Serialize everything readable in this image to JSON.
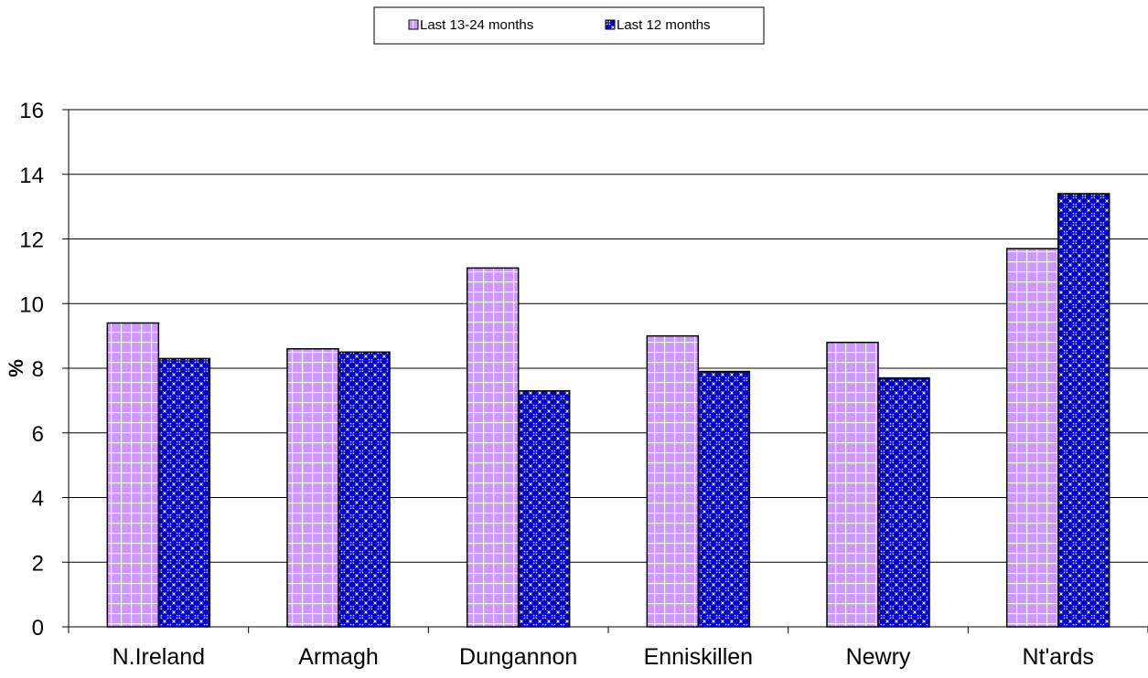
{
  "chart_data": {
    "type": "bar",
    "title": "",
    "xlabel": "",
    "ylabel": "%",
    "ylim": [
      0,
      16
    ],
    "yticks": [
      0,
      2,
      4,
      6,
      8,
      10,
      12,
      14,
      16
    ],
    "grid": true,
    "legend_position": "top-center",
    "categories": [
      "N.Ireland",
      "Armagh",
      "Dungannon",
      "Enniskillen",
      "Newry",
      "Nt'ards"
    ],
    "series": [
      {
        "name": "Last 13-24 months",
        "color": "#cc99ff",
        "pattern": "grid",
        "values": [
          9.4,
          8.6,
          11.1,
          9.0,
          8.8,
          11.7
        ]
      },
      {
        "name": "Last 12 months",
        "color": "#0000cc",
        "pattern": "diagonal-lattice",
        "values": [
          8.3,
          8.5,
          7.3,
          7.9,
          7.7,
          13.4
        ]
      }
    ]
  }
}
